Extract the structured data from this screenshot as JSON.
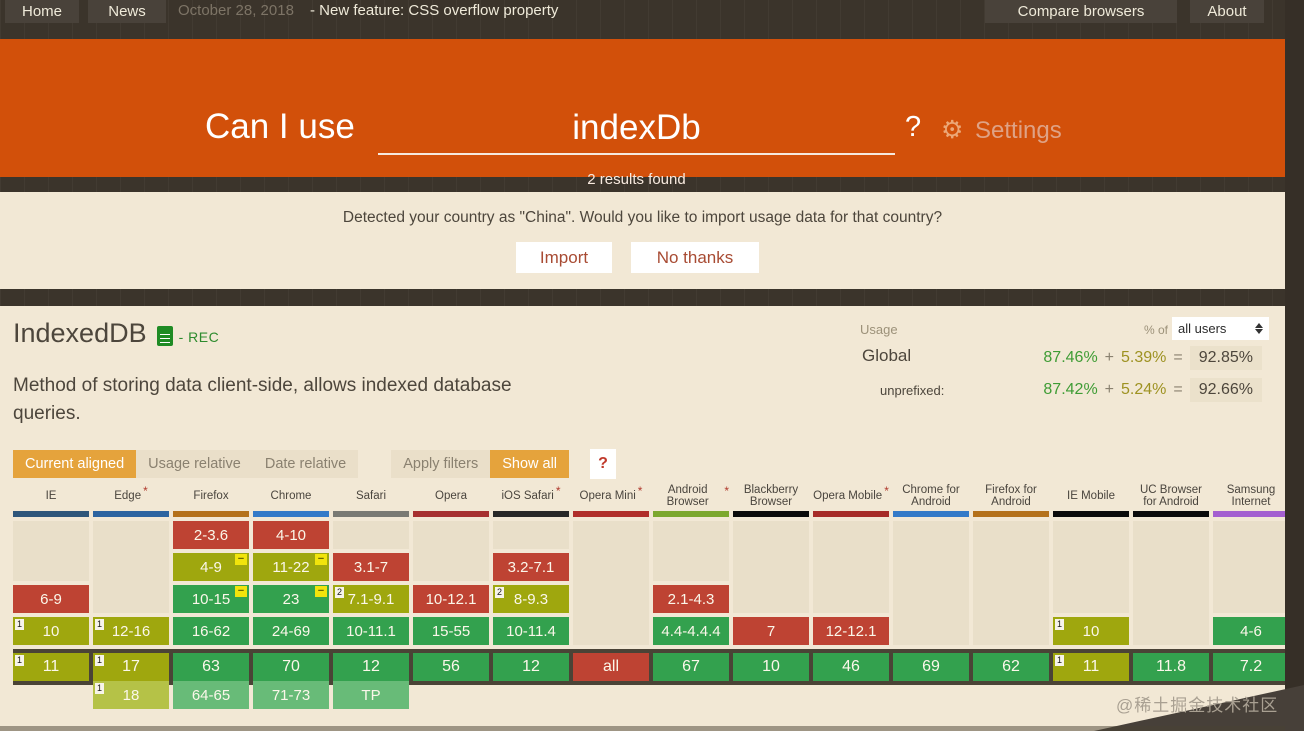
{
  "nav": {
    "home": "Home",
    "news": "News",
    "date": "October 28, 2018",
    "ticker": "- New feature: CSS overflow property",
    "compare": "Compare browsers",
    "about": "About"
  },
  "header": {
    "brand": "Can I use",
    "search_value": "indexDb",
    "question_mark": "?",
    "gear_icon": "gear",
    "settings_label": "Settings",
    "results_count": "2 results found",
    "accent_color": "#D2500A"
  },
  "country_banner": {
    "message": "Detected your country as \"China\". Would you like to import usage data for that country?",
    "import_label": "Import",
    "no_thanks_label": "No thanks"
  },
  "feature": {
    "title": "IndexedDB",
    "spec_icon": "w3c-document",
    "spec_status": "- REC",
    "description": "Method of storing data client-side, allows indexed database queries."
  },
  "usage": {
    "label": "Usage",
    "percent_of": "% of",
    "select_value": "all users",
    "rows": [
      {
        "label": "Global",
        "supported": "87.46%",
        "plus": "+",
        "partial": "5.39%",
        "equals": "=",
        "total": "92.85%"
      },
      {
        "label": "unprefixed:",
        "supported": "87.42%",
        "plus": "+",
        "partial": "5.24%",
        "equals": "=",
        "total": "92.66%"
      }
    ],
    "supported_color": "#3F9C35",
    "partial_color": "#9E9222"
  },
  "toolbar": {
    "current_aligned": "Current aligned",
    "usage_relative": "Usage relative",
    "date_relative": "Date relative",
    "apply_filters": "Apply filters",
    "show_all": "Show all",
    "help": "?",
    "active_color": "#E5A33C"
  },
  "support_table": {
    "star_glyph": "*",
    "prefix_badge_glyph": "−",
    "legend_colors": {
      "supported": "#33A14E",
      "partial": "#9FA70E",
      "unsupported": "#BE4333",
      "future": "#68BB78"
    },
    "columns": [
      {
        "name": "IE",
        "star": false,
        "bar": "#2F567A",
        "cells": [
          {
            "t": "empty",
            "r": 0,
            "span": 2
          },
          {
            "t": "red",
            "r": 2,
            "label": "6-9"
          },
          {
            "t": "olive",
            "r": 3,
            "label": "10",
            "note": "1"
          },
          {
            "t": "olive",
            "r": 4,
            "label": "11",
            "note": "1"
          }
        ]
      },
      {
        "name": "Edge",
        "star": true,
        "bar": "#2D64A0",
        "cells": [
          {
            "t": "empty",
            "r": 0,
            "span": 3
          },
          {
            "t": "olive",
            "r": 3,
            "label": "12-16",
            "note": "1"
          },
          {
            "t": "olive",
            "r": 4,
            "label": "17",
            "note": "1"
          },
          {
            "t": "olive-light",
            "r": 5,
            "label": "18",
            "note": "1"
          }
        ]
      },
      {
        "name": "Firefox",
        "star": false,
        "bar": "#B4711B",
        "cells": [
          {
            "t": "red",
            "r": 0,
            "label": "2-3.6"
          },
          {
            "t": "olive",
            "r": 1,
            "label": "4-9",
            "minus": true
          },
          {
            "t": "green",
            "r": 2,
            "label": "10-15",
            "minus": true
          },
          {
            "t": "green",
            "r": 3,
            "label": "16-62"
          },
          {
            "t": "green",
            "r": 4,
            "label": "63"
          },
          {
            "t": "green-light",
            "r": 5,
            "label": "64-65"
          }
        ]
      },
      {
        "name": "Chrome",
        "star": false,
        "bar": "#347AC8",
        "cells": [
          {
            "t": "red",
            "r": 0,
            "label": "4-10"
          },
          {
            "t": "olive",
            "r": 1,
            "label": "11-22",
            "minus": true
          },
          {
            "t": "green",
            "r": 2,
            "label": "23",
            "minus": true
          },
          {
            "t": "green",
            "r": 3,
            "label": "24-69"
          },
          {
            "t": "green",
            "r": 4,
            "label": "70"
          },
          {
            "t": "green-light",
            "r": 5,
            "label": "71-73"
          }
        ]
      },
      {
        "name": "Safari",
        "star": false,
        "bar": "#7A7A74",
        "cells": [
          {
            "t": "empty",
            "r": 0,
            "span": 1
          },
          {
            "t": "red",
            "r": 1,
            "label": "3.1-7"
          },
          {
            "t": "olive",
            "r": 2,
            "label": "7.1-9.1",
            "note": "2"
          },
          {
            "t": "green",
            "r": 3,
            "label": "10-11.1"
          },
          {
            "t": "green",
            "r": 4,
            "label": "12"
          },
          {
            "t": "green-light",
            "r": 5,
            "label": "TP"
          }
        ]
      },
      {
        "name": "Opera",
        "star": false,
        "bar": "#A63030",
        "cells": [
          {
            "t": "empty",
            "r": 0,
            "span": 2
          },
          {
            "t": "red",
            "r": 2,
            "label": "10-12.1"
          },
          {
            "t": "green",
            "r": 3,
            "label": "15-55"
          },
          {
            "t": "green",
            "r": 4,
            "label": "56"
          }
        ]
      },
      {
        "name": "iOS Safari",
        "star": true,
        "bar": "#282828",
        "cells": [
          {
            "t": "empty",
            "r": 0,
            "span": 1
          },
          {
            "t": "red",
            "r": 1,
            "label": "3.2-7.1"
          },
          {
            "t": "olive",
            "r": 2,
            "label": "8-9.3",
            "note": "2"
          },
          {
            "t": "green",
            "r": 3,
            "label": "10-11.4"
          },
          {
            "t": "green",
            "r": 4,
            "label": "12"
          }
        ]
      },
      {
        "name": "Opera Mini",
        "star": true,
        "bar": "#B02E2A",
        "cells": [
          {
            "t": "empty",
            "r": 0,
            "span": 4
          },
          {
            "t": "red",
            "r": 4,
            "label": "all"
          }
        ]
      },
      {
        "name": "Android Browser",
        "star": true,
        "bar": "#7CA82E",
        "cells": [
          {
            "t": "empty",
            "r": 0,
            "span": 2
          },
          {
            "t": "red",
            "r": 2,
            "label": "2.1-4.3"
          },
          {
            "t": "green",
            "r": 3,
            "label": "4.4-4.4.4"
          },
          {
            "t": "green",
            "r": 4,
            "label": "67"
          }
        ]
      },
      {
        "name": "Blackberry Browser",
        "star": false,
        "bar": "#0A0A0A",
        "cells": [
          {
            "t": "empty",
            "r": 0,
            "span": 3
          },
          {
            "t": "red",
            "r": 3,
            "label": "7"
          },
          {
            "t": "green",
            "r": 4,
            "label": "10"
          }
        ]
      },
      {
        "name": "Opera Mobile",
        "star": true,
        "bar": "#A62B28",
        "cells": [
          {
            "t": "empty",
            "r": 0,
            "span": 3
          },
          {
            "t": "red",
            "r": 3,
            "label": "12-12.1"
          },
          {
            "t": "green",
            "r": 4,
            "label": "46"
          }
        ]
      },
      {
        "name": "Chrome for Android",
        "star": false,
        "bar": "#347AC8",
        "cells": [
          {
            "t": "empty",
            "r": 0,
            "span": 4
          },
          {
            "t": "green",
            "r": 4,
            "label": "69"
          }
        ]
      },
      {
        "name": "Firefox for Android",
        "star": false,
        "bar": "#B4711B",
        "cells": [
          {
            "t": "empty",
            "r": 0,
            "span": 4
          },
          {
            "t": "green",
            "r": 4,
            "label": "62"
          }
        ]
      },
      {
        "name": "IE Mobile",
        "star": false,
        "bar": "#0A0A0A",
        "cells": [
          {
            "t": "empty",
            "r": 0,
            "span": 3
          },
          {
            "t": "olive",
            "r": 3,
            "label": "10",
            "note": "1"
          },
          {
            "t": "olive",
            "r": 4,
            "label": "11",
            "note": "1"
          }
        ]
      },
      {
        "name": "UC Browser for Android",
        "star": false,
        "bar": "#0A0A0A",
        "cells": [
          {
            "t": "empty",
            "r": 0,
            "span": 4
          },
          {
            "t": "green",
            "r": 4,
            "label": "11.8"
          }
        ]
      },
      {
        "name": "Samsung Internet",
        "star": false,
        "bar": "#A45FD0",
        "cells": [
          {
            "t": "empty",
            "r": 0,
            "span": 3
          },
          {
            "t": "green",
            "r": 3,
            "label": "4-6"
          },
          {
            "t": "green",
            "r": 4,
            "label": "7.2"
          }
        ]
      }
    ]
  },
  "watermark": "@稀土掘金技术社区"
}
